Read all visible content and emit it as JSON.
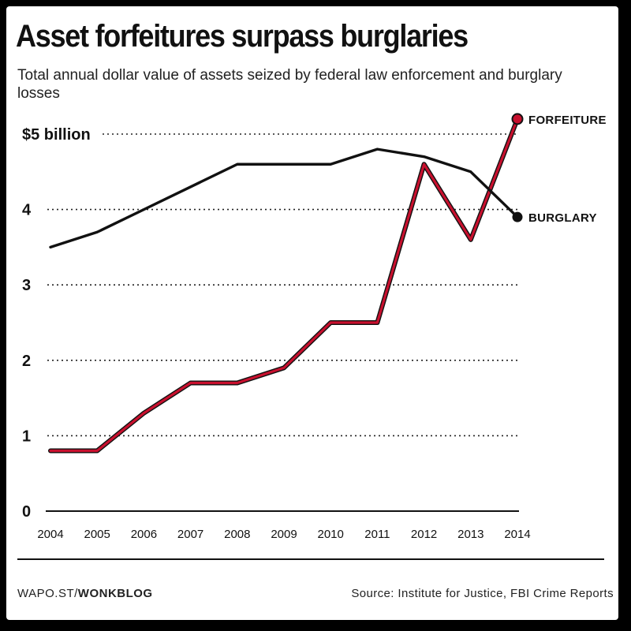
{
  "header": {
    "title": "Asset forfeitures surpass burglaries",
    "subtitle": "Total annual dollar value of assets seized by federal law enforcement and burglary losses"
  },
  "footer": {
    "credit_prefix": "WAPO.ST/",
    "credit_bold": "WONKBLOG",
    "source": "Source: Institute for Justice, FBI Crime Reports"
  },
  "colors": {
    "forfeiture": "#c8102e",
    "burglary": "#111111",
    "grid": "#222222"
  },
  "chart_data": {
    "type": "line",
    "title": "Asset forfeitures surpass burglaries",
    "subtitle": "Total annual dollar value of assets seized by federal law enforcement and burglary losses",
    "x": [
      2004,
      2005,
      2006,
      2007,
      2008,
      2009,
      2010,
      2011,
      2012,
      2013,
      2014
    ],
    "ylim": [
      0,
      5
    ],
    "yticks": [
      0,
      1,
      2,
      3,
      4,
      5
    ],
    "ytick_labels": [
      "0",
      "1",
      "2",
      "3",
      "4",
      "$5 billion"
    ],
    "grid": "horizontal dotted",
    "series": [
      {
        "name": "FORFEITURE",
        "values": [
          0.8,
          0.8,
          1.3,
          1.7,
          1.7,
          1.9,
          2.5,
          2.5,
          4.6,
          3.6,
          5.2
        ],
        "color": "#c8102e"
      },
      {
        "name": "BURGLARY",
        "values": [
          3.5,
          3.7,
          4.0,
          4.3,
          4.6,
          4.6,
          4.6,
          4.8,
          4.7,
          4.5,
          3.9
        ],
        "color": "#111111"
      }
    ]
  }
}
